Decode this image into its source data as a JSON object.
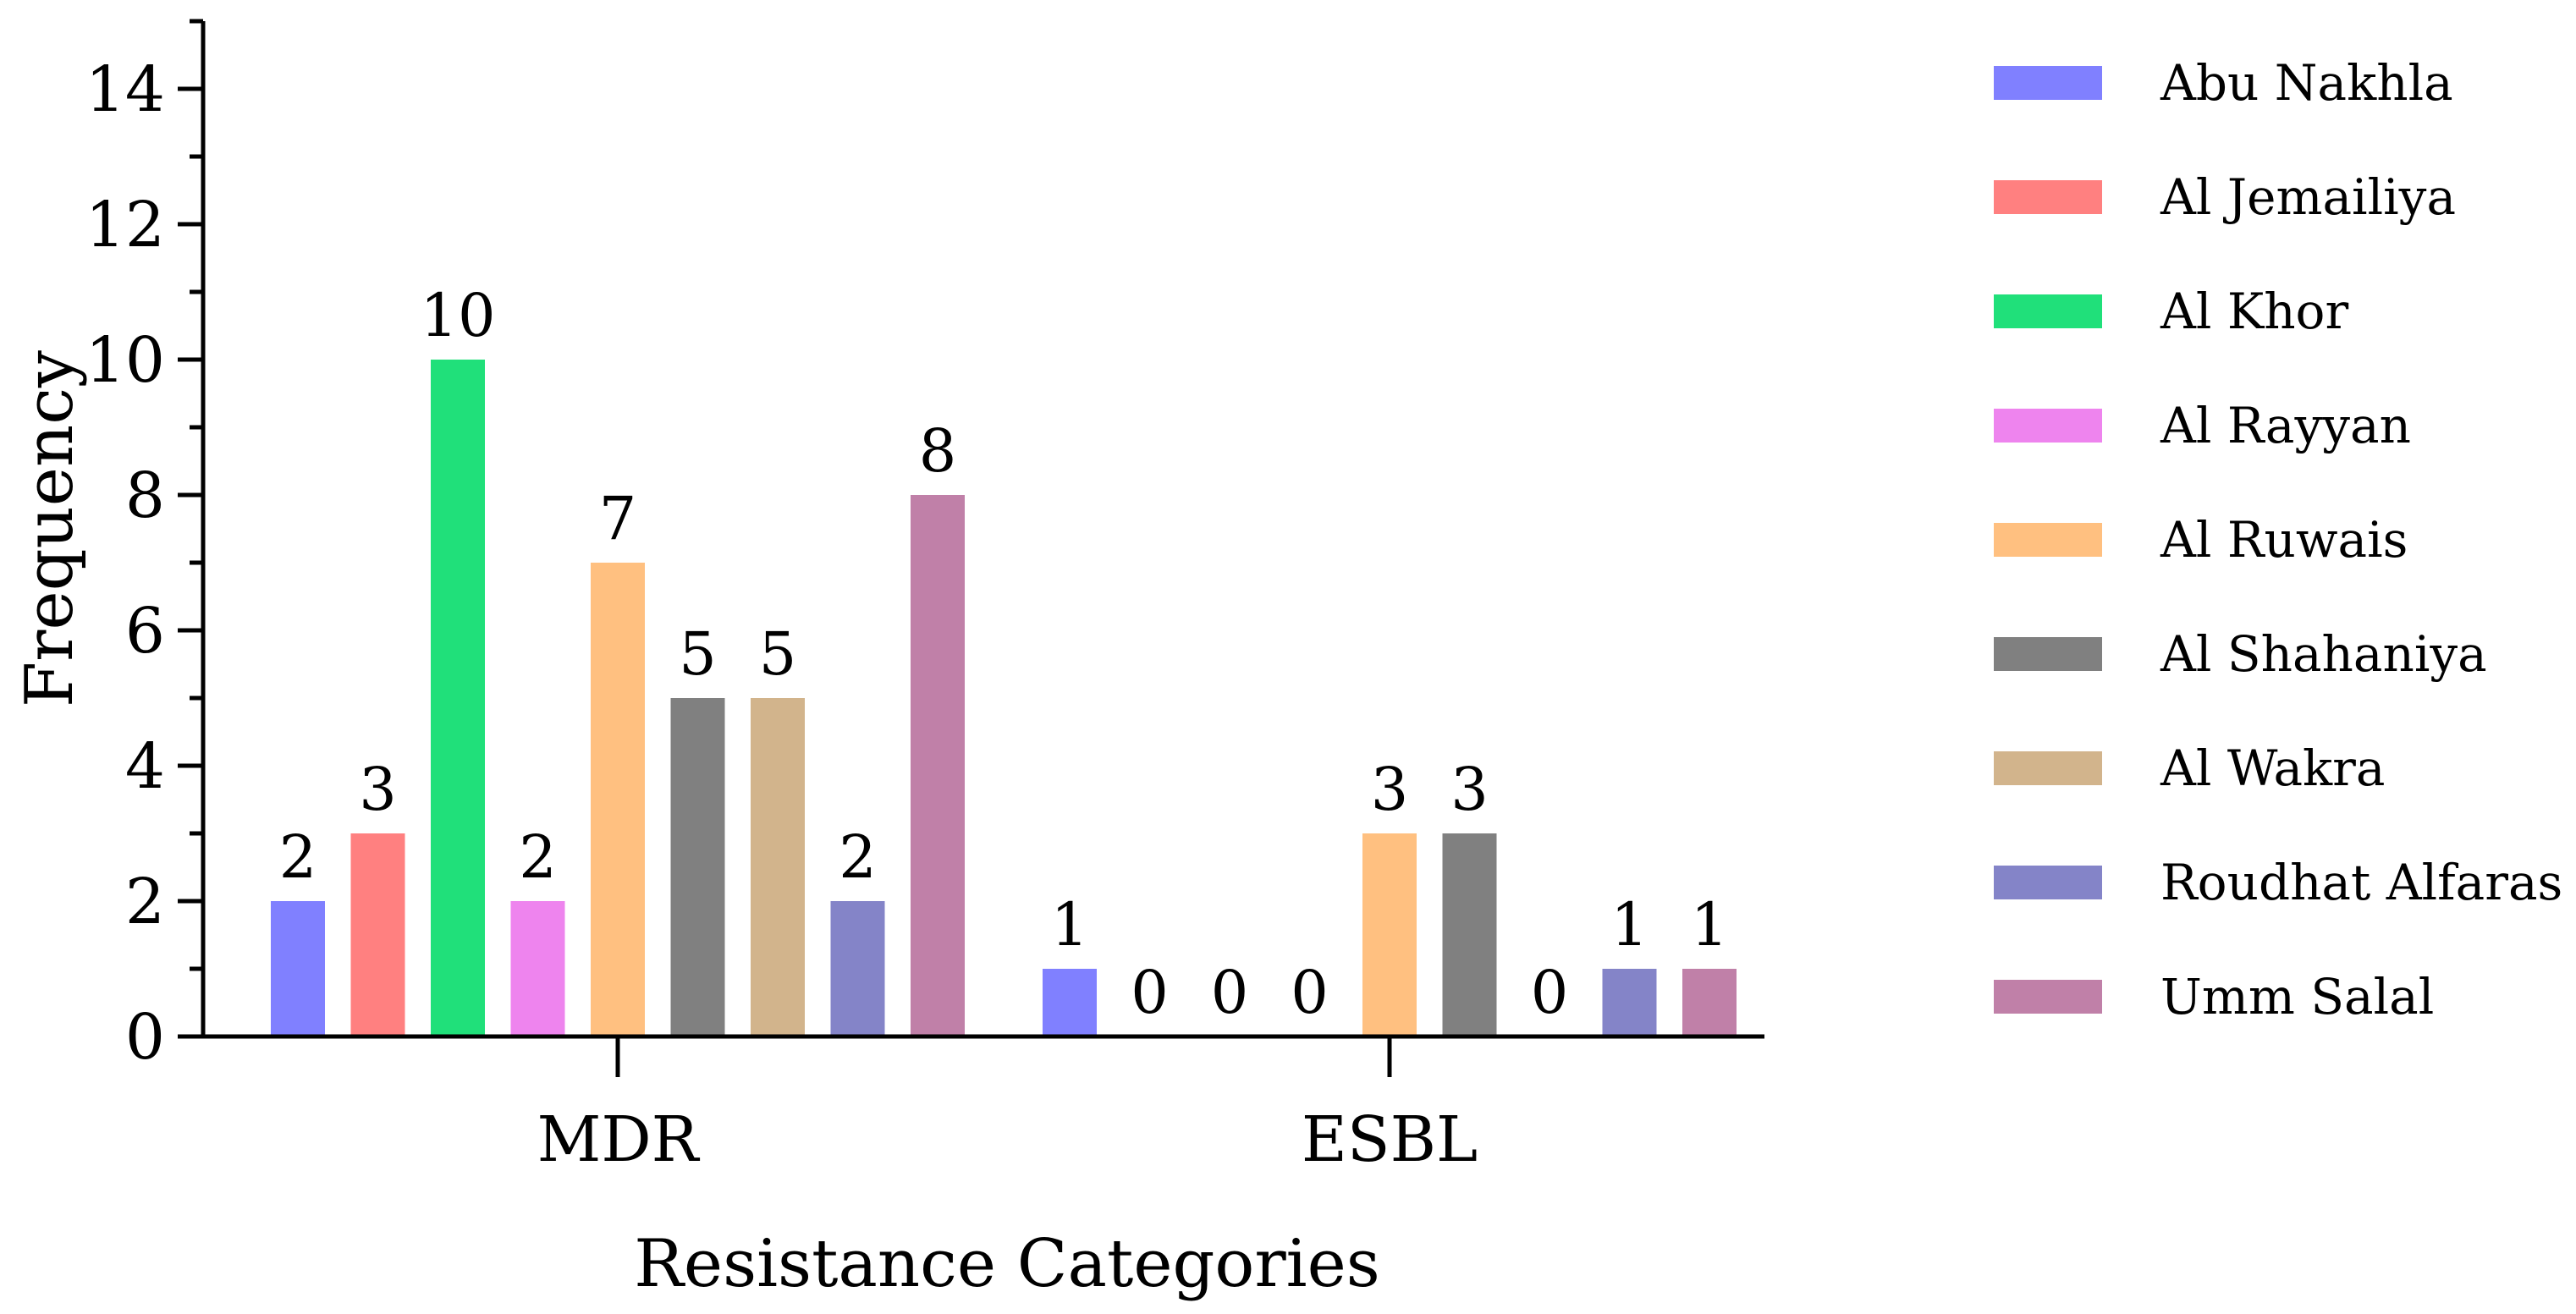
{
  "chart_data": {
    "type": "bar",
    "xlabel": "Resistance Categories",
    "ylabel": "Frequency",
    "ylim": [
      0,
      15
    ],
    "yticks": [
      0,
      2,
      4,
      6,
      8,
      10,
      12,
      14
    ],
    "categories": [
      "MDR",
      "ESBL"
    ],
    "grid": false,
    "legend_position": "right",
    "series": [
      {
        "name": "Abu Nakhla",
        "color": "#8080ff",
        "values": [
          2,
          1
        ]
      },
      {
        "name": "Al Jemailiya",
        "color": "#ff8080",
        "values": [
          3,
          0
        ]
      },
      {
        "name": "Al Khor",
        "color": "#20e07a",
        "values": [
          10,
          0
        ]
      },
      {
        "name": "Al Rayyan",
        "color": "#ee84ee",
        "values": [
          2,
          0
        ]
      },
      {
        "name": "Al Ruwais",
        "color": "#ffc080",
        "values": [
          7,
          3
        ]
      },
      {
        "name": "Al Shahaniya",
        "color": "#808080",
        "values": [
          5,
          3
        ]
      },
      {
        "name": "Al Wakra",
        "color": "#d2b48c",
        "values": [
          5,
          0
        ]
      },
      {
        "name": "Roudhat Alfaras",
        "color": "#8484c8",
        "values": [
          2,
          1
        ]
      },
      {
        "name": "Umm Salal",
        "color": "#c080a8",
        "values": [
          8,
          1
        ]
      }
    ]
  }
}
